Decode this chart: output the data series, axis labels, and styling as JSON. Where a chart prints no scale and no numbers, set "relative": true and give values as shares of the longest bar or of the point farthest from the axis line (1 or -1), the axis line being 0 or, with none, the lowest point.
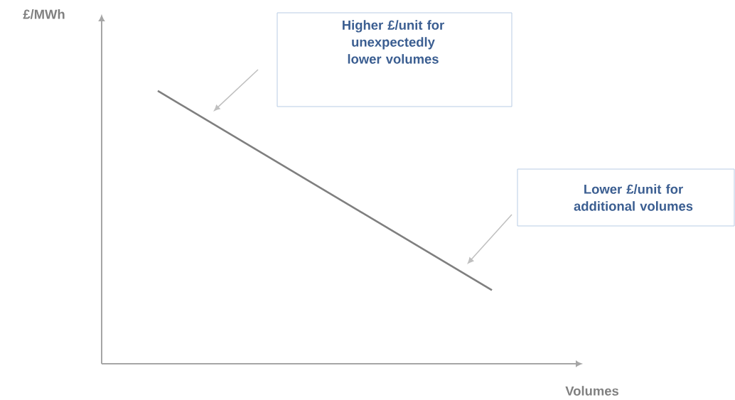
{
  "chart_data": {
    "type": "line",
    "relative": true,
    "categories": [
      null,
      null
    ],
    "values": [
      1,
      0.27
    ],
    "color": "#7f7f7f",
    "xlabel": "Volumes",
    "annotations": [
      "Higher £/unit for unexpectedly lower volumes",
      "Lower £/unit for additional volumes",
      "£/MWh"
    ]
  }
}
